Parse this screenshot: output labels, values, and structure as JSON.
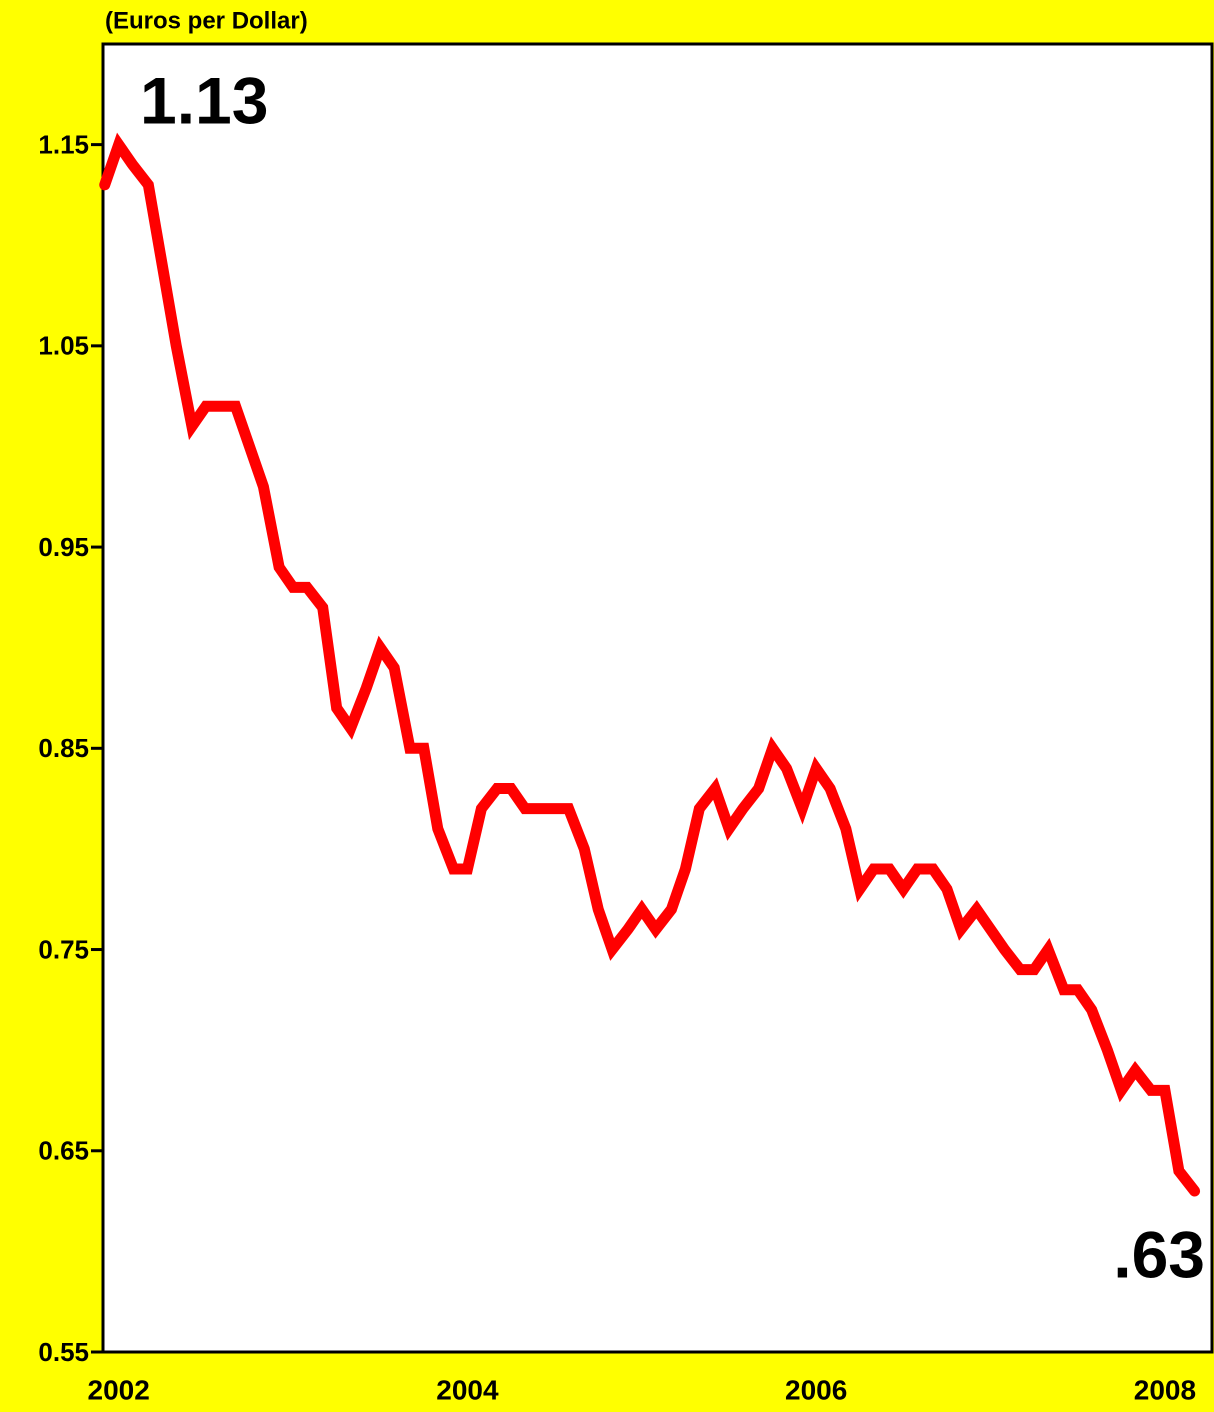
{
  "chart_data": {
    "type": "line",
    "y_label": "(Euros per Dollar)",
    "annotations": [
      "1.13",
      ".63"
    ],
    "x": [
      2001.92,
      2002.0,
      2002.08,
      2002.17,
      2002.25,
      2002.33,
      2002.42,
      2002.5,
      2002.58,
      2002.67,
      2002.75,
      2002.83,
      2002.92,
      2003.0,
      2003.08,
      2003.17,
      2003.25,
      2003.33,
      2003.42,
      2003.5,
      2003.58,
      2003.67,
      2003.75,
      2003.83,
      2003.92,
      2004.0,
      2004.08,
      2004.17,
      2004.25,
      2004.33,
      2004.42,
      2004.5,
      2004.58,
      2004.67,
      2004.75,
      2004.83,
      2004.92,
      2005.0,
      2005.08,
      2005.17,
      2005.25,
      2005.33,
      2005.42,
      2005.5,
      2005.58,
      2005.67,
      2005.75,
      2005.83,
      2005.92,
      2006.0,
      2006.08,
      2006.17,
      2006.25,
      2006.33,
      2006.42,
      2006.5,
      2006.58,
      2006.67,
      2006.75,
      2006.83,
      2006.92,
      2007.0,
      2007.08,
      2007.17,
      2007.25,
      2007.33,
      2007.42,
      2007.5,
      2007.58,
      2007.67,
      2007.75,
      2007.83,
      2007.92,
      2008.0,
      2008.08,
      2008.17
    ],
    "series": [
      {
        "color": "#ff0000",
        "values": [
          1.13,
          1.15,
          1.14,
          1.13,
          1.09,
          1.05,
          1.01,
          1.02,
          1.02,
          1.02,
          1.0,
          0.98,
          0.94,
          0.93,
          0.93,
          0.92,
          0.87,
          0.86,
          0.88,
          0.9,
          0.89,
          0.85,
          0.85,
          0.81,
          0.79,
          0.79,
          0.82,
          0.83,
          0.83,
          0.82,
          0.82,
          0.82,
          0.82,
          0.8,
          0.77,
          0.75,
          0.76,
          0.77,
          0.76,
          0.77,
          0.79,
          0.82,
          0.83,
          0.81,
          0.82,
          0.83,
          0.85,
          0.84,
          0.82,
          0.84,
          0.83,
          0.81,
          0.78,
          0.79,
          0.79,
          0.78,
          0.79,
          0.79,
          0.78,
          0.76,
          0.77,
          0.76,
          0.75,
          0.74,
          0.74,
          0.75,
          0.73,
          0.73,
          0.72,
          0.7,
          0.68,
          0.69,
          0.68,
          0.68,
          0.64,
          0.63
        ]
      }
    ],
    "xlim": [
      2001.91,
      2008.27
    ],
    "xticks": [
      2002,
      2004,
      2006,
      2008
    ],
    "ylim": [
      0.55,
      1.2
    ],
    "yticks": [
      0.55,
      0.65,
      0.75,
      0.85,
      0.95,
      1.05,
      1.15
    ]
  }
}
